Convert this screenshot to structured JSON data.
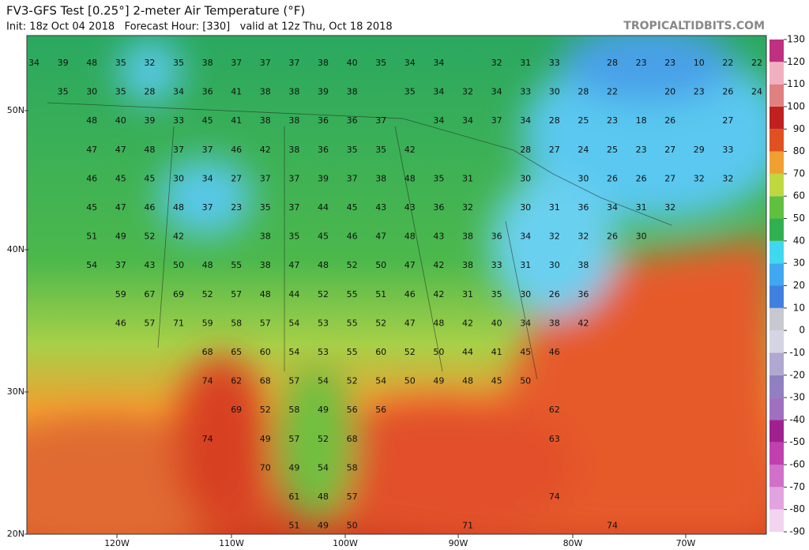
{
  "header": {
    "title": "FV3-GFS Test [0.25°] 2-meter Air Temperature (°F)",
    "subtitle": "Init: 18z Oct 04 2018   Forecast Hour: [330]   valid at 12z Thu, Oct 18 2018",
    "site": "TROPICALTIDBITS.COM"
  },
  "map": {
    "latitude_labels": [
      "50N",
      "40N",
      "30N",
      "20N"
    ],
    "longitude_labels": [
      "120W",
      "110W",
      "100W",
      "90W",
      "80W",
      "70W"
    ],
    "temperature_rows": [
      [
        34,
        39,
        48,
        35,
        32,
        35,
        38,
        37,
        37,
        37,
        38,
        40,
        35,
        34,
        34,
        null,
        32,
        31,
        33,
        null,
        28,
        23,
        23,
        10,
        22,
        22
      ],
      [
        null,
        35,
        30,
        35,
        28,
        34,
        36,
        41,
        38,
        38,
        39,
        38,
        null,
        35,
        34,
        32,
        34,
        33,
        30,
        28,
        22,
        null,
        20,
        23,
        26,
        24
      ],
      [
        null,
        null,
        48,
        40,
        39,
        33,
        45,
        41,
        38,
        38,
        36,
        36,
        37,
        null,
        34,
        34,
        37,
        34,
        28,
        25,
        23,
        18,
        26,
        null,
        27,
        null
      ],
      [
        null,
        null,
        47,
        47,
        48,
        37,
        37,
        46,
        42,
        38,
        36,
        35,
        35,
        42,
        null,
        null,
        null,
        28,
        27,
        24,
        25,
        23,
        27,
        29,
        33,
        null
      ],
      [
        null,
        null,
        46,
        45,
        45,
        30,
        34,
        27,
        37,
        37,
        39,
        37,
        38,
        48,
        35,
        31,
        null,
        30,
        null,
        30,
        26,
        26,
        27,
        32,
        32,
        null
      ],
      [
        null,
        null,
        45,
        47,
        46,
        48,
        37,
        23,
        35,
        37,
        44,
        45,
        43,
        43,
        36,
        32,
        null,
        30,
        31,
        36,
        34,
        31,
        32,
        null,
        null,
        null
      ],
      [
        null,
        null,
        51,
        49,
        52,
        42,
        null,
        null,
        38,
        35,
        45,
        46,
        47,
        48,
        43,
        38,
        36,
        34,
        32,
        32,
        26,
        30,
        null,
        null,
        null,
        null
      ],
      [
        null,
        null,
        54,
        37,
        43,
        50,
        48,
        55,
        38,
        47,
        48,
        52,
        50,
        47,
        42,
        38,
        33,
        31,
        30,
        38,
        null,
        null,
        null,
        null,
        null,
        null
      ],
      [
        null,
        null,
        null,
        59,
        67,
        69,
        52,
        57,
        48,
        44,
        52,
        55,
        51,
        46,
        42,
        31,
        35,
        30,
        26,
        36,
        null,
        null,
        null,
        null,
        null,
        null
      ],
      [
        null,
        null,
        null,
        46,
        57,
        71,
        59,
        58,
        57,
        54,
        53,
        55,
        52,
        47,
        48,
        42,
        40,
        34,
        38,
        42,
        null,
        null,
        null,
        null,
        null,
        null
      ],
      [
        null,
        null,
        null,
        null,
        null,
        null,
        68,
        65,
        60,
        54,
        53,
        55,
        60,
        52,
        50,
        44,
        41,
        45,
        46,
        null,
        null,
        null,
        null,
        null,
        null,
        null
      ],
      [
        null,
        null,
        null,
        null,
        null,
        null,
        74,
        62,
        68,
        57,
        54,
        52,
        54,
        50,
        49,
        48,
        45,
        50,
        null,
        null,
        null,
        null,
        null,
        null,
        null,
        null
      ],
      [
        null,
        null,
        null,
        null,
        null,
        null,
        null,
        69,
        52,
        58,
        49,
        56,
        56,
        null,
        null,
        null,
        null,
        null,
        62,
        null,
        null,
        null,
        null,
        null,
        null,
        null
      ],
      [
        null,
        null,
        null,
        null,
        null,
        null,
        74,
        null,
        49,
        57,
        52,
        68,
        null,
        null,
        null,
        null,
        null,
        null,
        63,
        null,
        null,
        null,
        null,
        null,
        null,
        null
      ],
      [
        null,
        null,
        null,
        null,
        null,
        null,
        null,
        null,
        70,
        49,
        54,
        58,
        null,
        null,
        null,
        null,
        null,
        null,
        null,
        null,
        null,
        null,
        null,
        null,
        null,
        null
      ],
      [
        null,
        null,
        null,
        null,
        null,
        null,
        null,
        null,
        null,
        61,
        48,
        57,
        null,
        null,
        null,
        null,
        null,
        null,
        74,
        null,
        null,
        null,
        null,
        null,
        null,
        null
      ],
      [
        null,
        null,
        null,
        null,
        null,
        null,
        null,
        null,
        null,
        51,
        49,
        50,
        null,
        null,
        null,
        71,
        null,
        null,
        null,
        null,
        74,
        null,
        null,
        null,
        null,
        null
      ]
    ]
  },
  "colorbar": {
    "lim": [
      -90,
      130
    ],
    "ticks": [
      130,
      120,
      110,
      100,
      90,
      80,
      70,
      60,
      50,
      40,
      30,
      20,
      10,
      0,
      -10,
      -20,
      -30,
      -40,
      -50,
      -60,
      -70,
      -80,
      -90
    ],
    "colors": [
      "#f2d4f0",
      "#e2a4e0",
      "#d070c8",
      "#c040b0",
      "#a02090",
      "#a070c0",
      "#9080c0",
      "#b0a8d0",
      "#d4d4e4",
      "#c8c8d0",
      "#4080e0",
      "#40a8f0",
      "#40d8f0",
      "#30b050",
      "#60c040",
      "#c0d840",
      "#f0a030",
      "#e05020",
      "#c02020",
      "#e08080",
      "#f0b0c0",
      "#c03080"
    ]
  }
}
